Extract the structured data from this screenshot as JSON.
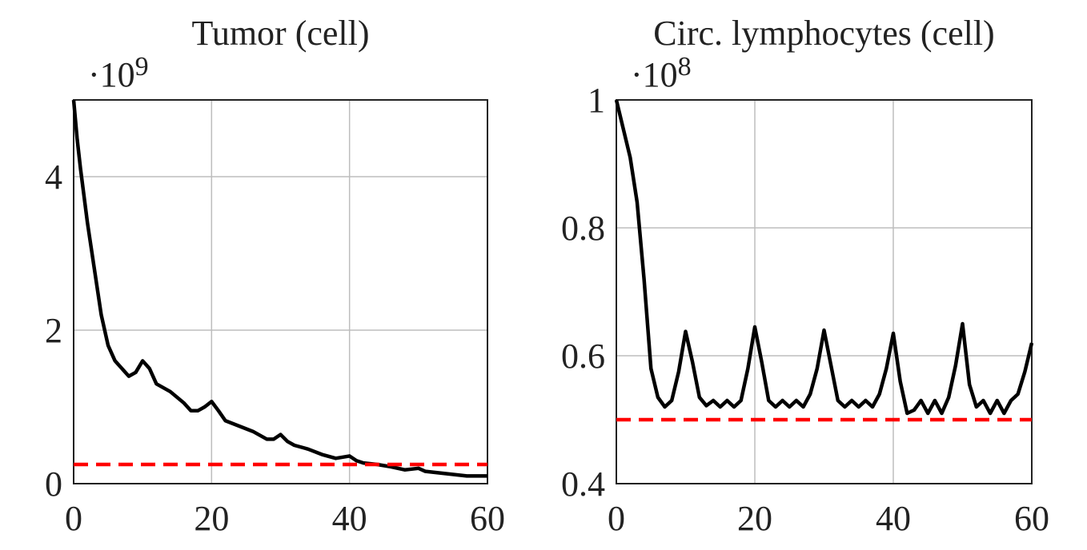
{
  "chart_data": [
    {
      "type": "line",
      "title": "Tumor (cell)",
      "y_multiplier": {
        "base": "·10",
        "exponent": "9"
      },
      "xlim": [
        0,
        60
      ],
      "xticks": [
        0,
        20,
        40,
        60
      ],
      "ylim": [
        0,
        5
      ],
      "yticks": [
        0,
        2,
        4
      ],
      "grid": true,
      "series": [
        {
          "color": "#000000",
          "dashed": false,
          "x": [
            0,
            0.5,
            1,
            2,
            3,
            4,
            5,
            6,
            7,
            8,
            9,
            10,
            11,
            12,
            14,
            16,
            17,
            18,
            19,
            20,
            21,
            22,
            24,
            26,
            28,
            29,
            30,
            31,
            32,
            34,
            36,
            38,
            40,
            41,
            42,
            44,
            46,
            48,
            50,
            51,
            54,
            57,
            60
          ],
          "values": [
            5,
            4.5,
            4.1,
            3.4,
            2.8,
            2.2,
            1.8,
            1.6,
            1.5,
            1.4,
            1.45,
            1.6,
            1.5,
            1.3,
            1.2,
            1.05,
            0.95,
            0.95,
            1.0,
            1.07,
            0.95,
            0.82,
            0.75,
            0.68,
            0.58,
            0.58,
            0.64,
            0.55,
            0.5,
            0.45,
            0.38,
            0.33,
            0.36,
            0.3,
            0.27,
            0.25,
            0.22,
            0.18,
            0.2,
            0.16,
            0.13,
            0.1,
            0.1
          ]
        },
        {
          "color": "#ff0000",
          "dashed": true,
          "x": [
            0,
            60
          ],
          "values": [
            0.25,
            0.25
          ]
        }
      ]
    },
    {
      "type": "line",
      "title": "Circ. lymphocytes (cell)",
      "y_multiplier": {
        "base": "·10",
        "exponent": "8"
      },
      "xlim": [
        0,
        60
      ],
      "xticks": [
        0,
        20,
        40,
        60
      ],
      "ylim": [
        0.4,
        1
      ],
      "yticks": [
        0.4,
        0.6,
        0.8,
        1
      ],
      "grid": true,
      "series": [
        {
          "color": "#000000",
          "dashed": false,
          "x": [
            0,
            1,
            2,
            3,
            4,
            5,
            6,
            7,
            8,
            9,
            10,
            11,
            12,
            13,
            14,
            15,
            16,
            17,
            18,
            19,
            20,
            21,
            22,
            23,
            24,
            25,
            26,
            27,
            28,
            29,
            30,
            31,
            32,
            33,
            34,
            35,
            36,
            37,
            38,
            39,
            40,
            41,
            42,
            43,
            44,
            45,
            46,
            47,
            48,
            49,
            50,
            51,
            52,
            53,
            54,
            55,
            56,
            57,
            58,
            59,
            60
          ],
          "values": [
            1.0,
            0.955,
            0.91,
            0.84,
            0.72,
            0.58,
            0.535,
            0.52,
            0.53,
            0.575,
            0.638,
            0.59,
            0.535,
            0.522,
            0.53,
            0.52,
            0.53,
            0.52,
            0.53,
            0.58,
            0.645,
            0.59,
            0.53,
            0.52,
            0.53,
            0.52,
            0.53,
            0.52,
            0.54,
            0.58,
            0.64,
            0.585,
            0.53,
            0.52,
            0.53,
            0.52,
            0.53,
            0.52,
            0.54,
            0.58,
            0.635,
            0.56,
            0.51,
            0.515,
            0.53,
            0.51,
            0.53,
            0.51,
            0.535,
            0.585,
            0.65,
            0.555,
            0.52,
            0.53,
            0.51,
            0.53,
            0.51,
            0.53,
            0.54,
            0.575,
            0.62
          ]
        },
        {
          "color": "#ff0000",
          "dashed": true,
          "x": [
            0,
            60
          ],
          "values": [
            0.5,
            0.5
          ]
        }
      ]
    }
  ]
}
